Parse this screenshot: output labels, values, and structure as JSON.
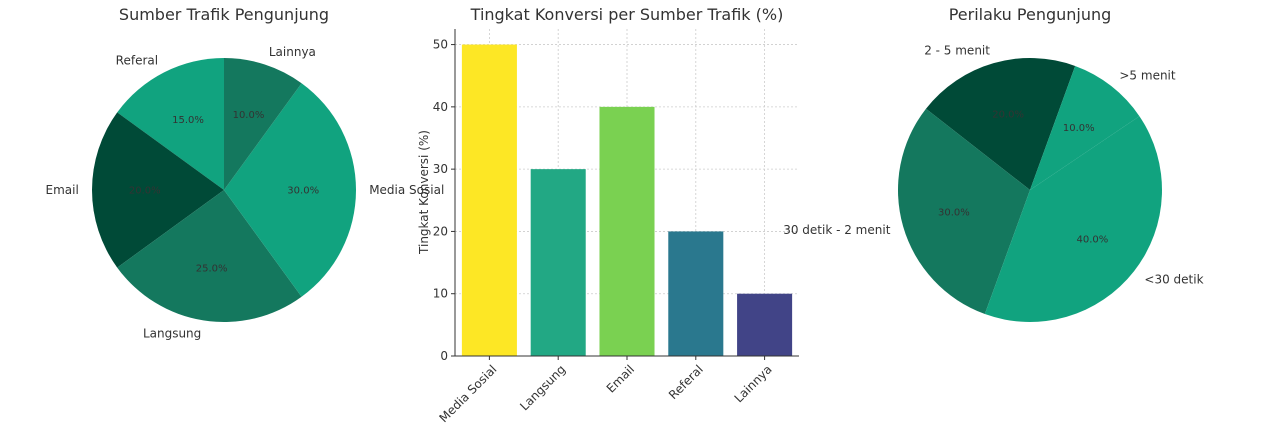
{
  "chart_data": [
    {
      "type": "pie",
      "title": "Sumber Trafik Pengunjung",
      "start_angle_deg": 90,
      "labels": [
        "Referal",
        "Email",
        "Langsung",
        "Media Sosial",
        "Lainnya"
      ],
      "values": [
        15,
        20,
        25,
        30,
        10
      ],
      "pct_labels": [
        "15.0%",
        "20.0%",
        "25.0%",
        "30.0%",
        "10.0%"
      ],
      "colors": [
        "#11a37f",
        "#004a37",
        "#14785e",
        "#11a37f",
        "#14785e"
      ]
    },
    {
      "type": "bar",
      "title": "Tingkat Konversi per Sumber Trafik (%)",
      "categories": [
        "Media Sosial",
        "Langsung",
        "Email",
        "Referal",
        "Lainnya"
      ],
      "values": [
        50,
        30,
        40,
        20,
        10
      ],
      "colors": [
        "#fde725",
        "#22a884",
        "#7ad151",
        "#2a788e",
        "#414487"
      ],
      "xlabel": "",
      "ylabel": "Tingkat Konversi (%)",
      "ylim": [
        0,
        52.5
      ],
      "yticks": [
        0,
        10,
        20,
        30,
        40,
        50
      ],
      "grid": true
    },
    {
      "type": "pie",
      "title": "Perilaku Pengunjung",
      "start_angle_deg": 70,
      "labels": [
        "2 - 5 menit",
        "30 detik - 2 menit",
        "<30 detik",
        ">5 menit"
      ],
      "values": [
        20,
        30,
        40,
        10
      ],
      "pct_labels": [
        "20.0%",
        "30.0%",
        "40.0%",
        "10.0%"
      ],
      "colors": [
        "#004a37",
        "#14785e",
        "#11a37f",
        "#11a37f"
      ]
    }
  ]
}
